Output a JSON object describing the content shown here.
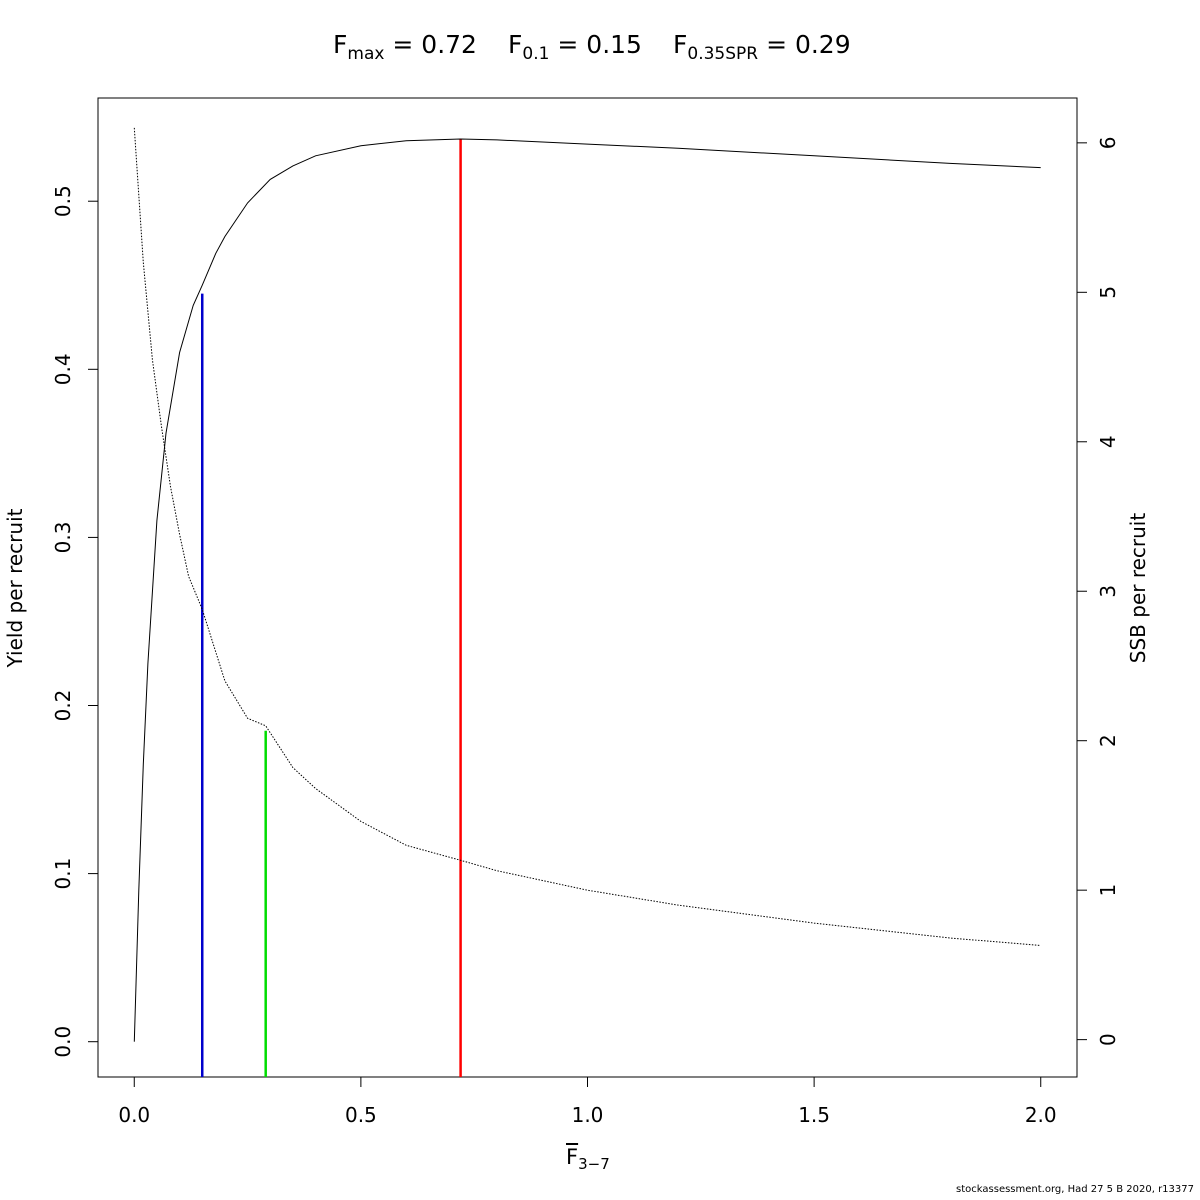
{
  "title": {
    "fmax": {
      "label": "F",
      "sub": "max",
      "value": "= 0.72"
    },
    "f01": {
      "label": "F",
      "sub": "0.1",
      "value": "= 0.15"
    },
    "fspr": {
      "label": "F",
      "sub": "0.35SPR",
      "value": "= 0.29"
    }
  },
  "footer": "stockassessment.org, Had 27 5 B 2020, r13377",
  "chart_data": {
    "type": "line",
    "xlabel": {
      "main": "F",
      "sub": "3−7"
    },
    "ylabel": "Yield per recruit",
    "y2label": "SSB per recruit",
    "xlim": [
      -0.08,
      2.08
    ],
    "ylim": [
      -0.021,
      0.5614
    ],
    "y2lim": [
      -0.25,
      6.3
    ],
    "x_ticks": [
      0.0,
      0.5,
      1.0,
      1.5,
      2.0
    ],
    "x_tick_labels": [
      "0.0",
      "0.5",
      "1.0",
      "1.5",
      "2.0"
    ],
    "y_ticks": [
      0.0,
      0.1,
      0.2,
      0.3,
      0.4,
      0.5
    ],
    "y_tick_labels": [
      "0.0",
      "0.1",
      "0.2",
      "0.3",
      "0.4",
      "0.5"
    ],
    "y2_ticks": [
      0,
      1,
      2,
      3,
      4,
      5,
      6
    ],
    "y2_tick_labels": [
      "0",
      "1",
      "2",
      "3",
      "4",
      "5",
      "6"
    ],
    "grid": false,
    "series": [
      {
        "id": "ypr",
        "axis": "left",
        "style": "solid",
        "color": "#000000",
        "x": [
          0.0,
          0.01,
          0.02,
          0.03,
          0.05,
          0.07,
          0.1,
          0.13,
          0.15,
          0.18,
          0.2,
          0.25,
          0.3,
          0.35,
          0.4,
          0.5,
          0.6,
          0.72,
          0.8,
          1.0,
          1.2,
          1.5,
          1.8,
          2.0
        ],
        "y": [
          0.0,
          0.09,
          0.165,
          0.225,
          0.31,
          0.362,
          0.41,
          0.438,
          0.45,
          0.469,
          0.479,
          0.499,
          0.513,
          0.521,
          0.527,
          0.533,
          0.536,
          0.537,
          0.5365,
          0.534,
          0.5315,
          0.527,
          0.5225,
          0.52
        ]
      },
      {
        "id": "sspr",
        "axis": "right",
        "style": "dotted",
        "color": "#000000",
        "x": [
          0.0,
          0.02,
          0.04,
          0.06,
          0.08,
          0.1,
          0.12,
          0.15,
          0.2,
          0.25,
          0.29,
          0.35,
          0.4,
          0.5,
          0.6,
          0.72,
          0.8,
          1.0,
          1.2,
          1.5,
          1.8,
          2.0
        ],
        "y": [
          6.1,
          5.2,
          4.55,
          4.1,
          3.7,
          3.38,
          3.1,
          2.88,
          2.4,
          2.15,
          2.1,
          1.82,
          1.68,
          1.46,
          1.3,
          1.2,
          1.13,
          1.0,
          0.9,
          0.78,
          0.68,
          0.63
        ]
      }
    ],
    "vlines": [
      {
        "id": "fmax",
        "x": 0.72,
        "ymax": 0.537,
        "color": "#ff0000"
      },
      {
        "id": "f01",
        "x": 0.15,
        "ymax": 0.445,
        "color": "#0000cc"
      },
      {
        "id": "fspr",
        "x": 0.29,
        "ymax": 0.185,
        "color": "#00dd00"
      }
    ]
  }
}
